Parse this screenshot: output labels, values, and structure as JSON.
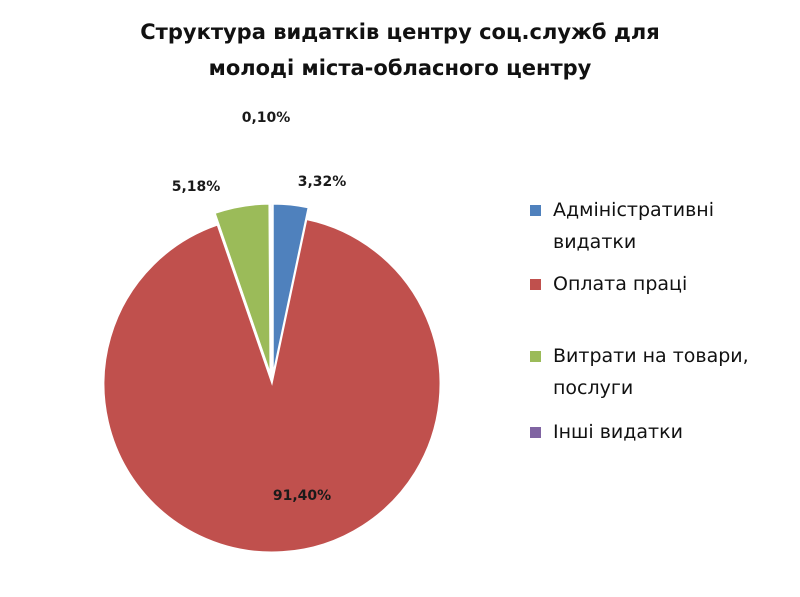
{
  "chart_data": {
    "type": "pie",
    "title": "Структура видатків центру соц.служб для молоді міста-обласного центру",
    "title_lines": [
      "Структура видатків центру соц.служб для",
      "молоді міста-обласного центру"
    ],
    "categories": [
      "Адміністративні видатки",
      "Оплата праці",
      "Витрати на товари, послуги",
      "Інші видатки"
    ],
    "values": [
      3.32,
      91.4,
      5.18,
      0.1
    ],
    "data_labels": [
      "3,32%",
      "91,40%",
      "5,18%",
      "0,10%"
    ],
    "colors": [
      "#4f81bd",
      "#c0504d",
      "#9bbb59",
      "#8064a2"
    ],
    "legend_position": "right",
    "exploded": true
  }
}
